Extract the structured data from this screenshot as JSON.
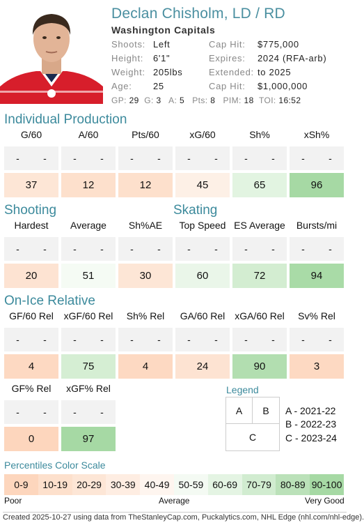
{
  "player": {
    "name": "Declan Chisholm, LD / RD",
    "team": "Washington Capitals",
    "info_left": [
      {
        "k": "Shoots:",
        "v": "Left"
      },
      {
        "k": "Height:",
        "v": "6'1\""
      },
      {
        "k": "Weight:",
        "v": "205lbs"
      },
      {
        "k": "Age:",
        "v": "25"
      }
    ],
    "info_right": [
      {
        "k": "Cap Hit:",
        "v": "$775,000"
      },
      {
        "k": "Expires:",
        "v": "2024 (RFA-arb)"
      },
      {
        "k": "Extended:",
        "v": "to 2025"
      },
      {
        "k": "Cap Hit:",
        "v": "$1,000,000"
      }
    ],
    "stats": [
      {
        "k": "GP:",
        "v": "29"
      },
      {
        "k": "G:",
        "v": "3"
      },
      {
        "k": "A:",
        "v": "5"
      },
      {
        "k": "Pts:",
        "v": "8"
      },
      {
        "k": "PIM:",
        "v": "18"
      },
      {
        "k": "TOI:",
        "v": "16:52"
      }
    ]
  },
  "sections": {
    "individual": "Individual Production",
    "shooting": "Shooting",
    "skating": "Skating",
    "onice": "On-Ice Relative"
  },
  "metrics": [
    {
      "label": "G/60",
      "a": "-",
      "b": "-",
      "c": "37",
      "color": "#fde6d6"
    },
    {
      "label": "A/60",
      "a": "-",
      "b": "-",
      "c": "12",
      "color": "#fde0cc"
    },
    {
      "label": "Pts/60",
      "a": "-",
      "b": "-",
      "c": "12",
      "color": "#fde0cc"
    },
    {
      "label": "xG/60",
      "a": "-",
      "b": "-",
      "c": "45",
      "color": "#fdf0e6"
    },
    {
      "label": "Sh%",
      "a": "-",
      "b": "-",
      "c": "65",
      "color": "#e2f4e1"
    },
    {
      "label": "xSh%",
      "a": "-",
      "b": "-",
      "c": "96",
      "color": "#a6d9a4"
    },
    {
      "label": "Hardest",
      "a": "-",
      "b": "-",
      "c": "20",
      "color": "#fde3d2"
    },
    {
      "label": "Average",
      "a": "-",
      "b": "-",
      "c": "51",
      "color": "#f5fbf4"
    },
    {
      "label": "Sh%AE",
      "a": "-",
      "b": "-",
      "c": "30",
      "color": "#fde6d6"
    },
    {
      "label": "Top Speed",
      "a": "-",
      "b": "-",
      "c": "60",
      "color": "#eaf6e9"
    },
    {
      "label": "ES Average",
      "a": "-",
      "b": "-",
      "c": "72",
      "color": "#d3edd1"
    },
    {
      "label": "Bursts/mi",
      "a": "-",
      "b": "-",
      "c": "94",
      "color": "#a9dba7"
    },
    {
      "label": "GF/60 Rel",
      "a": "-",
      "b": "-",
      "c": "4",
      "color": "#fdd9c2"
    },
    {
      "label": "xGF/60 Rel",
      "a": "-",
      "b": "-",
      "c": "75",
      "color": "#d5eed3"
    },
    {
      "label": "Sh% Rel",
      "a": "-",
      "b": "-",
      "c": "4",
      "color": "#fdd9c2"
    },
    {
      "label": "GA/60 Rel",
      "a": "-",
      "b": "-",
      "c": "24",
      "color": "#fde3d2"
    },
    {
      "label": "xGA/60 Rel",
      "a": "-",
      "b": "-",
      "c": "90",
      "color": "#b2deb0"
    },
    {
      "label": "Sv% Rel",
      "a": "-",
      "b": "-",
      "c": "3",
      "color": "#fdd9c2"
    },
    {
      "label": "GF% Rel",
      "a": "-",
      "b": "-",
      "c": "0",
      "color": "#fdd6bd"
    },
    {
      "label": "xGF% Rel",
      "a": "-",
      "b": "-",
      "c": "97",
      "color": "#a6d9a4"
    }
  ],
  "legend": {
    "title": "Legend",
    "cell_a": "A",
    "cell_b": "B",
    "cell_c": "C",
    "lines": [
      "A - 2021-22",
      "B - 2022-23",
      "C - 2023-24"
    ]
  },
  "scale": {
    "title": "Percentiles Color Scale",
    "bins": [
      {
        "label": "0-9",
        "color": "#fdd6bd"
      },
      {
        "label": "10-19",
        "color": "#fde0cc"
      },
      {
        "label": "20-29",
        "color": "#fde6d6"
      },
      {
        "label": "30-39",
        "color": "#feede2"
      },
      {
        "label": "40-49",
        "color": "#fef5ef"
      },
      {
        "label": "50-59",
        "color": "#f4faf3"
      },
      {
        "label": "60-69",
        "color": "#e4f4e3"
      },
      {
        "label": "70-79",
        "color": "#d1ecd0"
      },
      {
        "label": "80-89",
        "color": "#bbe1b9"
      },
      {
        "label": "90-100",
        "color": "#a6d9a4"
      }
    ],
    "poor": "Poor",
    "average": "Average",
    "very_good": "Very Good"
  },
  "footer": "Created 2025-10-27 using data from TheStanleyCap.com, Puckalytics.com, NHL Edge (nhl.com/nhl-edge)."
}
